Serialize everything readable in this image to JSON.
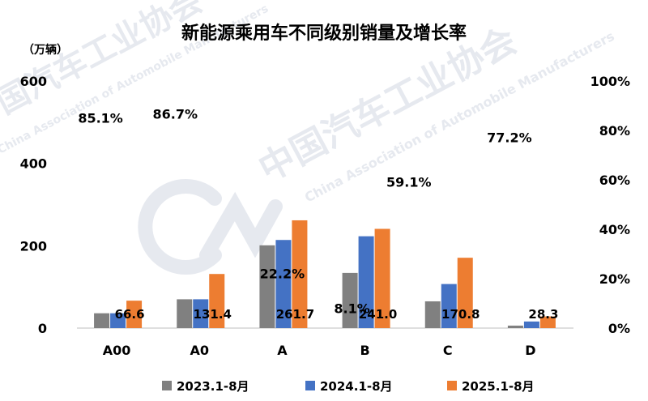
{
  "chart_data": {
    "type": "bar",
    "title": "新能源乘用车不同级别销量及增长率",
    "ylabel_left": "（万辆）",
    "categories": [
      "A00",
      "A0",
      "A",
      "B",
      "C",
      "D"
    ],
    "series": [
      {
        "name": "2023.1-8月",
        "color": "#808080",
        "values": [
          36,
          70,
          201,
          134,
          65,
          6
        ]
      },
      {
        "name": "2024.1-8月",
        "color": "#4472c4",
        "values": [
          36,
          70,
          214,
          223,
          107,
          16
        ]
      },
      {
        "name": "2025.1-8月",
        "color": "#ed7d31",
        "values": [
          66.6,
          131.4,
          261.7,
          241.0,
          170.8,
          28.3
        ]
      }
    ],
    "value_labels": [
      "66.6",
      "131.4",
      "261.7",
      "241.0",
      "170.8",
      "28.3"
    ],
    "growth_rates": [
      85.1,
      86.7,
      22.2,
      8.1,
      59.1,
      77.2
    ],
    "growth_labels": [
      "85.1%",
      "86.7%",
      "22.2%",
      "8.1%",
      "59.1%",
      "77.2%"
    ],
    "ylim_left": [
      0,
      600
    ],
    "yticks_left": [
      "0",
      "200",
      "400",
      "600"
    ],
    "ylim_right": [
      0,
      100
    ],
    "yticks_right": [
      "0%",
      "20%",
      "40%",
      "60%",
      "80%",
      "100%"
    ],
    "legend_position": "bottom",
    "grid": false
  },
  "watermark": {
    "cn": "中国汽车工业协会",
    "en": "China Association of Automobile Manufacturers"
  }
}
